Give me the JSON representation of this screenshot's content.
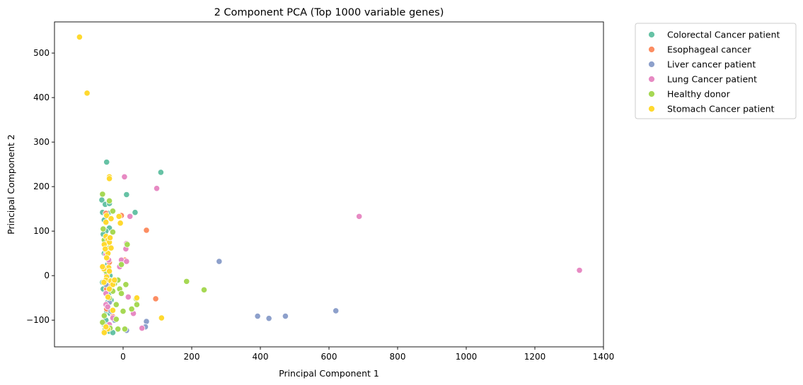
{
  "chart_data": {
    "type": "scatter",
    "title": "2 Component PCA (Top 1000 variable genes)",
    "xlabel": "Principal Component 1",
    "ylabel": "Principal Component 2",
    "xlim": [
      -200,
      1400
    ],
    "ylim": [
      -160,
      570
    ],
    "xticks": [
      0,
      200,
      400,
      600,
      800,
      1000,
      1200,
      1400
    ],
    "yticks": [
      -100,
      0,
      100,
      200,
      300,
      400,
      500
    ],
    "legend_position": "outside-top-right",
    "grid": false,
    "series": [
      {
        "name": "Colorectal Cancer patient",
        "color": "#66c2a5",
        "points": [
          [
            -48,
            255
          ],
          [
            -62,
            170
          ],
          [
            -60,
            142
          ],
          [
            -55,
            125
          ],
          [
            -52,
            160
          ],
          [
            -40,
            162
          ],
          [
            -44,
            140
          ],
          [
            -40,
            107
          ],
          [
            -50,
            100
          ],
          [
            -58,
            93
          ],
          [
            -45,
            75
          ],
          [
            10,
            182
          ],
          [
            110,
            232
          ],
          [
            35,
            142
          ],
          [
            -45,
            25
          ],
          [
            -38,
            0
          ],
          [
            -60,
            -15
          ],
          [
            -42,
            -40
          ],
          [
            -58,
            -30
          ],
          [
            -35,
            -55
          ],
          [
            -48,
            -80
          ],
          [
            -50,
            -100
          ],
          [
            -55,
            -110
          ],
          [
            -40,
            -125
          ],
          [
            -30,
            -128
          ],
          [
            -45,
            -60
          ],
          [
            -38,
            -85
          ],
          [
            -55,
            50
          ]
        ]
      },
      {
        "name": "Esophageal cancer",
        "color": "#fc8d62",
        "points": [
          [
            -5,
            135
          ],
          [
            68,
            102
          ],
          [
            95,
            -52
          ],
          [
            -45,
            55
          ],
          [
            -40,
            30
          ],
          [
            -42,
            -20
          ],
          [
            -48,
            -30
          ],
          [
            -48,
            -75
          ],
          [
            -30,
            -92
          ],
          [
            -40,
            -112
          ],
          [
            5,
            35
          ],
          [
            -50,
            140
          ]
        ]
      },
      {
        "name": "Liver cancer patient",
        "color": "#8da0cb",
        "points": [
          [
            280,
            32
          ],
          [
            392,
            -91
          ],
          [
            425,
            -96
          ],
          [
            473,
            -91
          ],
          [
            620,
            -79
          ],
          [
            68,
            -103
          ],
          [
            65,
            -115
          ],
          [
            10,
            -123
          ],
          [
            -55,
            -125
          ],
          [
            -50,
            -20
          ],
          [
            -40,
            -60
          ],
          [
            -35,
            -80
          ],
          [
            -25,
            -100
          ]
        ]
      },
      {
        "name": "Lung Cancer patient",
        "color": "#e78ac3",
        "points": [
          [
            4,
            222
          ],
          [
            98,
            196
          ],
          [
            20,
            133
          ],
          [
            688,
            133
          ],
          [
            1330,
            12
          ],
          [
            10,
            72
          ],
          [
            8,
            60
          ],
          [
            -5,
            35
          ],
          [
            10,
            32
          ],
          [
            -42,
            35
          ],
          [
            -10,
            20
          ],
          [
            -50,
            48
          ],
          [
            15,
            -48
          ],
          [
            30,
            -85
          ],
          [
            55,
            -118
          ],
          [
            -50,
            -65
          ],
          [
            -45,
            -70
          ],
          [
            -30,
            -95
          ],
          [
            -40,
            -110
          ],
          [
            -50,
            -40
          ],
          [
            -48,
            2
          ]
        ]
      },
      {
        "name": "Healthy donor",
        "color": "#a6d854",
        "points": [
          [
            -60,
            183
          ],
          [
            -40,
            168
          ],
          [
            -30,
            145
          ],
          [
            -30,
            98
          ],
          [
            -58,
            105
          ],
          [
            -55,
            80
          ],
          [
            -40,
            62
          ],
          [
            -48,
            55
          ],
          [
            -45,
            18
          ],
          [
            -50,
            10
          ],
          [
            -40,
            -10
          ],
          [
            -30,
            -35
          ],
          [
            -10,
            -30
          ],
          [
            -40,
            -50
          ],
          [
            -20,
            -65
          ],
          [
            0,
            -80
          ],
          [
            5,
            -120
          ],
          [
            -15,
            -120
          ],
          [
            -20,
            -98
          ],
          [
            -55,
            -90
          ],
          [
            -60,
            -105
          ],
          [
            -52,
            -120
          ],
          [
            -38,
            -118
          ],
          [
            185,
            -13
          ],
          [
            236,
            -32
          ],
          [
            40,
            -65
          ],
          [
            25,
            -75
          ],
          [
            38,
            -52
          ],
          [
            8,
            -20
          ],
          [
            12,
            70
          ],
          [
            -5,
            25
          ],
          [
            -25,
            -18
          ],
          [
            -15,
            -10
          ],
          [
            -5,
            -40
          ]
        ]
      },
      {
        "name": "Stomach Cancer patient",
        "color": "#ffd92f",
        "points": [
          [
            -127,
            536
          ],
          [
            -105,
            410
          ],
          [
            -40,
            222
          ],
          [
            -40,
            218
          ],
          [
            -48,
            135
          ],
          [
            -50,
            120
          ],
          [
            -35,
            128
          ],
          [
            -12,
            133
          ],
          [
            -8,
            118
          ],
          [
            -50,
            88
          ],
          [
            -44,
            80
          ],
          [
            -40,
            75
          ],
          [
            -55,
            70
          ],
          [
            -44,
            50
          ],
          [
            -52,
            60
          ],
          [
            -35,
            62
          ],
          [
            -48,
            40
          ],
          [
            -42,
            18
          ],
          [
            -56,
            15
          ],
          [
            -40,
            10
          ],
          [
            -48,
            -3
          ],
          [
            -50,
            -10
          ],
          [
            -56,
            -15
          ],
          [
            -36,
            -12
          ],
          [
            -30,
            -20
          ],
          [
            -25,
            -10
          ],
          [
            -40,
            -30
          ],
          [
            -44,
            -48
          ],
          [
            -30,
            -78
          ],
          [
            -45,
            -120
          ],
          [
            -55,
            -128
          ],
          [
            -50,
            -115
          ],
          [
            40,
            -50
          ],
          [
            112,
            -95
          ],
          [
            -60,
            20
          ],
          [
            -38,
            85
          ]
        ]
      }
    ]
  }
}
